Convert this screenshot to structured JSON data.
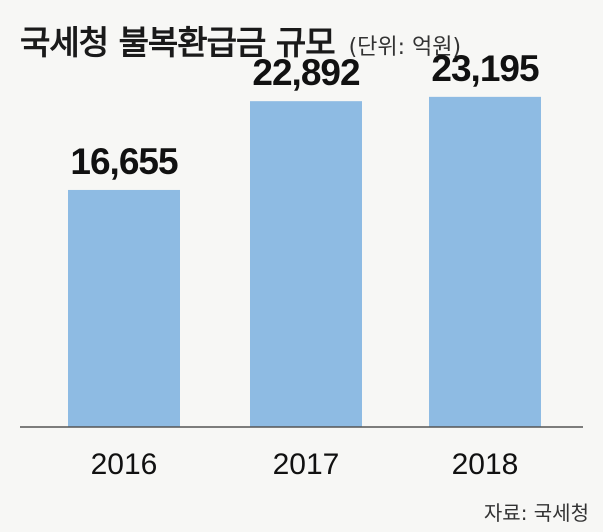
{
  "chart_data": {
    "type": "bar",
    "title": "국세청 불복환급금 규모",
    "unit_note": "(단위: 억원)",
    "categories": [
      "2016",
      "2017",
      "2018"
    ],
    "values": [
      16655,
      22892,
      23195
    ],
    "value_labels": [
      "16,655",
      "22,892",
      "23,195"
    ],
    "ylim": [
      0,
      30000
    ],
    "bar_color": "#8ebbe3",
    "source": "자료: 국세청"
  }
}
